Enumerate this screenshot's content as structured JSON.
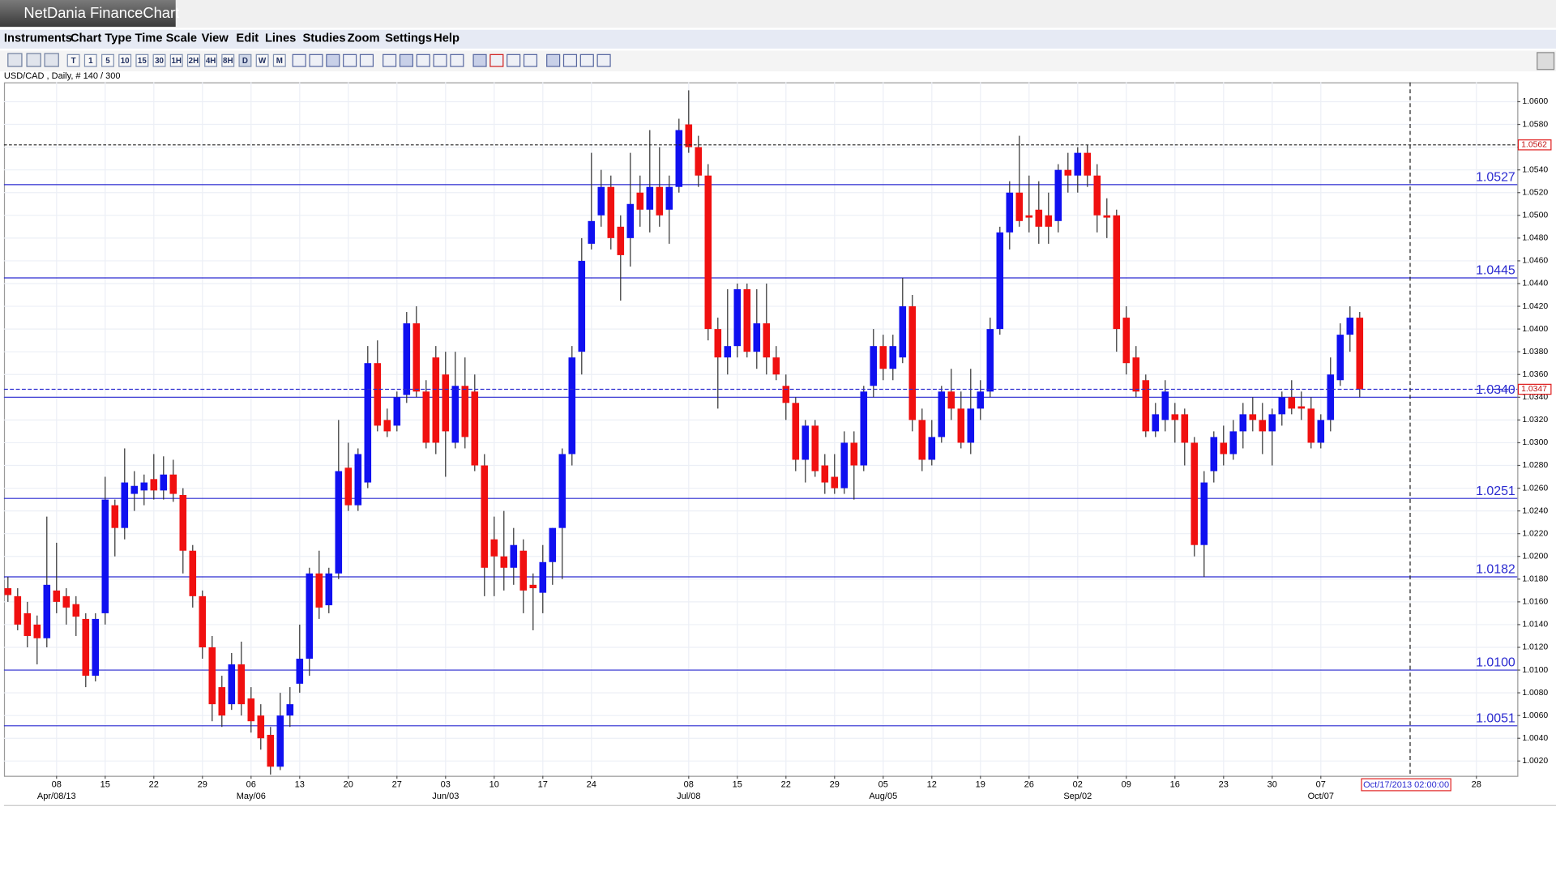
{
  "app": {
    "title": "NetDania FinanceChart",
    "menu": [
      "Instruments",
      "Chart Type",
      "Time Scale",
      "View",
      "Edit",
      "Lines",
      "Studies",
      "Zoom",
      "Settings",
      "Help"
    ],
    "toolbar": [
      "T",
      "1",
      "5",
      "10",
      "15",
      "30",
      "1H",
      "2H",
      "4H",
      "8H",
      "D",
      "W",
      "M"
    ]
  },
  "chart_data": {
    "type": "candlestick",
    "title": "USD/CAD , Daily, # 140 / 300",
    "up_color": "#1010f0",
    "down_color": "#f01010",
    "level_color": "#2a2ad0",
    "ylim": [
      1.0007,
      1.0617
    ],
    "yticks": [
      {
        "value": 1.002,
        "label": "1.0020"
      },
      {
        "value": 1.004,
        "label": "1.0040"
      },
      {
        "value": 1.006,
        "label": "1.0060"
      },
      {
        "value": 1.008,
        "label": "1.0080"
      },
      {
        "value": 1.01,
        "label": "1.0100"
      },
      {
        "value": 1.012,
        "label": "1.0120"
      },
      {
        "value": 1.014,
        "label": "1.0140"
      },
      {
        "value": 1.016,
        "label": "1.0160"
      },
      {
        "value": 1.018,
        "label": "1.0180"
      },
      {
        "value": 1.02,
        "label": "1.0200"
      },
      {
        "value": 1.022,
        "label": "1.0220"
      },
      {
        "value": 1.024,
        "label": "1.0240"
      },
      {
        "value": 1.026,
        "label": "1.0260"
      },
      {
        "value": 1.028,
        "label": "1.0280"
      },
      {
        "value": 1.03,
        "label": "1.0300"
      },
      {
        "value": 1.032,
        "label": "1.0320"
      },
      {
        "value": 1.034,
        "label": "1.0340"
      },
      {
        "value": 1.036,
        "label": "1.0360"
      },
      {
        "value": 1.038,
        "label": "1.0380"
      },
      {
        "value": 1.04,
        "label": "1.0400"
      },
      {
        "value": 1.042,
        "label": "1.0420"
      },
      {
        "value": 1.044,
        "label": "1.0440"
      },
      {
        "value": 1.046,
        "label": "1.0460"
      },
      {
        "value": 1.048,
        "label": "1.0480"
      },
      {
        "value": 1.05,
        "label": "1.0500"
      },
      {
        "value": 1.052,
        "label": "1.0520"
      },
      {
        "value": 1.054,
        "label": "1.0540"
      },
      {
        "value": 1.056,
        "label": "1.0560"
      },
      {
        "value": 1.058,
        "label": "1.0580"
      },
      {
        "value": 1.06,
        "label": "1.0600"
      }
    ],
    "levels": [
      1.0527,
      1.0445,
      {
        "value": 1.034,
        "label": "1.0340"
      },
      1.0251,
      1.0182,
      {
        "value": 1.01,
        "label": "1.0100"
      },
      1.0051
    ],
    "last_price": 1.0347,
    "marker_price": 1.0562,
    "cursor_label": "Oct/17/2013 02:00:00",
    "categories": [
      null,
      null,
      null,
      null,
      null,
      "08",
      null,
      null,
      null,
      null,
      "15",
      null,
      null,
      null,
      null,
      "22",
      null,
      null,
      null,
      null,
      "29",
      null,
      null,
      null,
      null,
      "06",
      null,
      null,
      null,
      null,
      "13",
      null,
      null,
      null,
      null,
      "20",
      null,
      null,
      null,
      null,
      "27",
      null,
      null,
      null,
      null,
      "03",
      null,
      null,
      null,
      null,
      "10",
      null,
      null,
      null,
      null,
      "17",
      null,
      null,
      null,
      null,
      "24",
      null,
      null,
      null,
      null,
      null,
      null,
      null,
      null,
      null,
      "08",
      null,
      null,
      null,
      null,
      "15",
      null,
      null,
      null,
      null,
      "22",
      null,
      null,
      null,
      null,
      "29",
      null,
      null,
      null,
      null,
      "05",
      null,
      null,
      null,
      null,
      "12",
      null,
      null,
      null,
      null,
      "19",
      null,
      null,
      null,
      null,
      "26",
      null,
      null,
      null,
      null,
      "02",
      null,
      null,
      null,
      null,
      "09",
      null,
      null,
      null,
      null,
      "16",
      null,
      null,
      null,
      null,
      "23",
      null,
      null,
      null,
      null,
      "30",
      null,
      null,
      null,
      null,
      "07",
      null,
      null,
      null,
      null,
      null,
      null,
      null,
      null,
      null,
      null,
      null,
      null,
      null,
      null,
      null,
      "28"
    ],
    "month_labels": [
      null,
      null,
      null,
      null,
      null,
      "Apr/08/13",
      null,
      null,
      null,
      null,
      null,
      null,
      null,
      null,
      null,
      null,
      null,
      null,
      null,
      null,
      null,
      null,
      null,
      null,
      null,
      "May/06",
      null,
      null,
      null,
      null,
      null,
      null,
      null,
      null,
      null,
      null,
      null,
      null,
      null,
      null,
      null,
      null,
      null,
      null,
      null,
      "Jun/03",
      null,
      null,
      null,
      null,
      null,
      null,
      null,
      null,
      null,
      null,
      null,
      null,
      null,
      null,
      null,
      null,
      null,
      null,
      null,
      null,
      null,
      null,
      null,
      null,
      "Jul/08",
      null,
      null,
      null,
      null,
      null,
      null,
      null,
      null,
      null,
      null,
      null,
      null,
      null,
      null,
      null,
      null,
      null,
      null,
      null,
      "Aug/05",
      null,
      null,
      null,
      null,
      null,
      null,
      null,
      null,
      null,
      null,
      null,
      null,
      null,
      null,
      null,
      null,
      null,
      null,
      null,
      "Sep/02",
      null,
      null,
      null,
      null,
      null,
      null,
      null,
      null,
      null,
      null,
      null,
      null,
      null,
      null,
      null,
      null,
      null,
      null,
      null,
      null,
      null,
      null,
      null,
      null,
      "Oct/07",
      null,
      null,
      null,
      null,
      null,
      null,
      null,
      null,
      null,
      null,
      null,
      null,
      null,
      null,
      null,
      null
    ],
    "ohlc": [
      [
        1.0172,
        1.0182,
        1.016,
        1.0166
      ],
      [
        1.0165,
        1.0172,
        1.0135,
        1.014
      ],
      [
        1.015,
        1.016,
        1.012,
        1.013
      ],
      [
        1.014,
        1.0148,
        1.0105,
        1.0128
      ],
      [
        1.0128,
        1.0235,
        1.012,
        1.0175
      ],
      [
        1.017,
        1.0212,
        1.015,
        1.016
      ],
      [
        1.0165,
        1.0172,
        1.014,
        1.0155
      ],
      [
        1.0158,
        1.0165,
        1.013,
        1.0147
      ],
      [
        1.0145,
        1.015,
        1.0085,
        1.0095
      ],
      [
        1.0095,
        1.015,
        1.009,
        1.0145
      ],
      [
        1.015,
        1.027,
        1.014,
        1.025
      ],
      [
        1.0245,
        1.025,
        1.02,
        1.0225
      ],
      [
        1.0225,
        1.0295,
        1.0215,
        1.0265
      ],
      [
        1.0255,
        1.0275,
        1.024,
        1.0262
      ],
      [
        1.0258,
        1.0272,
        1.0245,
        1.0265
      ],
      [
        1.0268,
        1.029,
        1.025,
        1.0258
      ],
      [
        1.0258,
        1.0288,
        1.025,
        1.0272
      ],
      [
        1.0272,
        1.0285,
        1.0248,
        1.0255
      ],
      [
        1.0254,
        1.026,
        1.0185,
        1.0205
      ],
      [
        1.0205,
        1.021,
        1.0155,
        1.0165
      ],
      [
        1.0165,
        1.017,
        1.011,
        1.012
      ],
      [
        1.012,
        1.013,
        1.0055,
        1.007
      ],
      [
        1.0085,
        1.0095,
        1.005,
        1.006
      ],
      [
        1.007,
        1.0115,
        1.0065,
        1.0105
      ],
      [
        1.0105,
        1.0125,
        1.006,
        1.007
      ],
      [
        1.0075,
        1.0085,
        1.0045,
        1.0055
      ],
      [
        1.006,
        1.007,
        1.003,
        1.004
      ],
      [
        1.0043,
        1.005,
        1.0008,
        1.0015
      ],
      [
        1.0015,
        1.008,
        1.0012,
        1.006
      ],
      [
        1.006,
        1.0085,
        1.005,
        1.007
      ],
      [
        1.0088,
        1.014,
        1.008,
        1.011
      ],
      [
        1.011,
        1.019,
        1.0095,
        1.0185
      ],
      [
        1.0185,
        1.0205,
        1.0145,
        1.0155
      ],
      [
        1.0157,
        1.019,
        1.015,
        1.0185
      ],
      [
        1.0185,
        1.032,
        1.018,
        1.0275
      ],
      [
        1.0278,
        1.03,
        1.024,
        1.0245
      ],
      [
        1.0245,
        1.0295,
        1.024,
        1.029
      ],
      [
        1.0265,
        1.0385,
        1.026,
        1.037
      ],
      [
        1.037,
        1.039,
        1.031,
        1.0315
      ],
      [
        1.032,
        1.033,
        1.0305,
        1.031
      ],
      [
        1.0315,
        1.0345,
        1.031,
        1.034
      ],
      [
        1.0342,
        1.0415,
        1.0335,
        1.0405
      ],
      [
        1.0405,
        1.042,
        1.034,
        1.0345
      ],
      [
        1.0345,
        1.0355,
        1.0295,
        1.03
      ],
      [
        1.0375,
        1.0385,
        1.029,
        1.03
      ],
      [
        1.036,
        1.038,
        1.027,
        1.031
      ],
      [
        1.03,
        1.038,
        1.0295,
        1.035
      ],
      [
        1.035,
        1.0375,
        1.0295,
        1.0305
      ],
      [
        1.0345,
        1.036,
        1.0275,
        1.028
      ],
      [
        1.028,
        1.029,
        1.0165,
        1.019
      ],
      [
        1.0215,
        1.0235,
        1.0165,
        1.02
      ],
      [
        1.02,
        1.024,
        1.017,
        1.019
      ],
      [
        1.019,
        1.0225,
        1.0175,
        1.021
      ],
      [
        1.0205,
        1.0215,
        1.015,
        1.017
      ],
      [
        1.0175,
        1.0185,
        1.0135,
        1.0172
      ],
      [
        1.0168,
        1.021,
        1.015,
        1.0195
      ],
      [
        1.0195,
        1.0225,
        1.0175,
        1.0225
      ],
      [
        1.0225,
        1.0295,
        1.018,
        1.029
      ],
      [
        1.029,
        1.0385,
        1.028,
        1.0375
      ],
      [
        1.038,
        1.048,
        1.036,
        1.046
      ],
      [
        1.0475,
        1.0555,
        1.047,
        1.0495
      ],
      [
        1.05,
        1.054,
        1.049,
        1.0525
      ],
      [
        1.0525,
        1.0535,
        1.047,
        1.048
      ],
      [
        1.049,
        1.05,
        1.0425,
        1.0465
      ],
      [
        1.048,
        1.0555,
        1.0455,
        1.051
      ],
      [
        1.052,
        1.0535,
        1.049,
        1.0505
      ],
      [
        1.0505,
        1.0575,
        1.0485,
        1.0525
      ],
      [
        1.0525,
        1.056,
        1.049,
        1.05
      ],
      [
        1.0505,
        1.0535,
        1.0475,
        1.0525
      ],
      [
        1.0525,
        1.0585,
        1.052,
        1.0575
      ],
      [
        1.058,
        1.061,
        1.0555,
        1.056
      ],
      [
        1.056,
        1.057,
        1.0525,
        1.0535
      ],
      [
        1.0535,
        1.0545,
        1.039,
        1.04
      ],
      [
        1.04,
        1.041,
        1.033,
        1.0375
      ],
      [
        1.0375,
        1.0435,
        1.036,
        1.0385
      ],
      [
        1.0385,
        1.044,
        1.0375,
        1.0435
      ],
      [
        1.0435,
        1.044,
        1.0375,
        1.038
      ],
      [
        1.038,
        1.0435,
        1.0365,
        1.0405
      ],
      [
        1.0405,
        1.044,
        1.036,
        1.0375
      ],
      [
        1.0375,
        1.0385,
        1.0355,
        1.036
      ],
      [
        1.035,
        1.036,
        1.032,
        1.0335
      ],
      [
        1.0335,
        1.034,
        1.0275,
        1.0285
      ],
      [
        1.0285,
        1.032,
        1.0265,
        1.0315
      ],
      [
        1.0315,
        1.032,
        1.027,
        1.0275
      ],
      [
        1.028,
        1.029,
        1.0255,
        1.0265
      ],
      [
        1.027,
        1.029,
        1.0255,
        1.026
      ],
      [
        1.026,
        1.031,
        1.0255,
        1.03
      ],
      [
        1.03,
        1.031,
        1.025,
        1.028
      ],
      [
        1.028,
        1.035,
        1.0275,
        1.0345
      ],
      [
        1.035,
        1.04,
        1.034,
        1.0385
      ],
      [
        1.0385,
        1.0395,
        1.0355,
        1.0365
      ],
      [
        1.0365,
        1.0395,
        1.0355,
        1.0385
      ],
      [
        1.0375,
        1.0445,
        1.037,
        1.042
      ],
      [
        1.042,
        1.043,
        1.031,
        1.032
      ],
      [
        1.032,
        1.033,
        1.0275,
        1.0285
      ],
      [
        1.0285,
        1.032,
        1.028,
        1.0305
      ],
      [
        1.0305,
        1.035,
        1.03,
        1.0345
      ],
      [
        1.0345,
        1.0365,
        1.032,
        1.033
      ],
      [
        1.033,
        1.0345,
        1.0295,
        1.03
      ],
      [
        1.03,
        1.0365,
        1.029,
        1.033
      ],
      [
        1.033,
        1.0355,
        1.032,
        1.0345
      ],
      [
        1.0345,
        1.041,
        1.034,
        1.04
      ],
      [
        1.04,
        1.049,
        1.0395,
        1.0485
      ],
      [
        1.0485,
        1.053,
        1.047,
        1.052
      ],
      [
        1.052,
        1.057,
        1.049,
        1.0495
      ],
      [
        1.05,
        1.0535,
        1.0485,
        1.0498
      ],
      [
        1.0505,
        1.053,
        1.0475,
        1.049
      ],
      [
        1.05,
        1.052,
        1.0475,
        1.049
      ],
      [
        1.0495,
        1.0545,
        1.0485,
        1.054
      ],
      [
        1.054,
        1.0555,
        1.052,
        1.0535
      ],
      [
        1.0535,
        1.056,
        1.052,
        1.0555
      ],
      [
        1.0555,
        1.0562,
        1.0525,
        1.0535
      ],
      [
        1.0535,
        1.0545,
        1.0485,
        1.05
      ],
      [
        1.05,
        1.0515,
        1.048,
        1.0498
      ],
      [
        1.05,
        1.0505,
        1.038,
        1.04
      ],
      [
        1.041,
        1.042,
        1.036,
        1.037
      ],
      [
        1.0375,
        1.0385,
        1.034,
        1.0345
      ],
      [
        1.0355,
        1.036,
        1.0305,
        1.031
      ],
      [
        1.031,
        1.0335,
        1.0305,
        1.0325
      ],
      [
        1.032,
        1.0355,
        1.031,
        1.0345
      ],
      [
        1.0325,
        1.0335,
        1.03,
        1.032
      ],
      [
        1.0325,
        1.033,
        1.028,
        1.03
      ],
      [
        1.03,
        1.0305,
        1.02,
        1.021
      ],
      [
        1.021,
        1.0275,
        1.0182,
        1.0265
      ],
      [
        1.0275,
        1.031,
        1.0265,
        1.0305
      ],
      [
        1.03,
        1.0315,
        1.028,
        1.029
      ],
      [
        1.029,
        1.032,
        1.0285,
        1.031
      ],
      [
        1.031,
        1.0335,
        1.0295,
        1.0325
      ],
      [
        1.0325,
        1.034,
        1.031,
        1.032
      ],
      [
        1.032,
        1.0335,
        1.029,
        1.031
      ],
      [
        1.031,
        1.033,
        1.028,
        1.0325
      ],
      [
        1.0325,
        1.0345,
        1.0315,
        1.034
      ],
      [
        1.034,
        1.0355,
        1.0325,
        1.033
      ],
      [
        1.0332,
        1.0345,
        1.032,
        1.033
      ],
      [
        1.033,
        1.034,
        1.0295,
        1.03
      ],
      [
        1.03,
        1.0325,
        1.0295,
        1.032
      ],
      [
        1.032,
        1.0375,
        1.031,
        1.036
      ],
      [
        1.0355,
        1.0405,
        1.035,
        1.0395
      ],
      [
        1.0395,
        1.042,
        1.038,
        1.041
      ],
      [
        1.041,
        1.0415,
        1.034,
        1.0347
      ],
      null,
      null,
      null,
      null,
      null,
      null,
      null,
      null,
      null,
      null,
      null,
      null
    ]
  }
}
